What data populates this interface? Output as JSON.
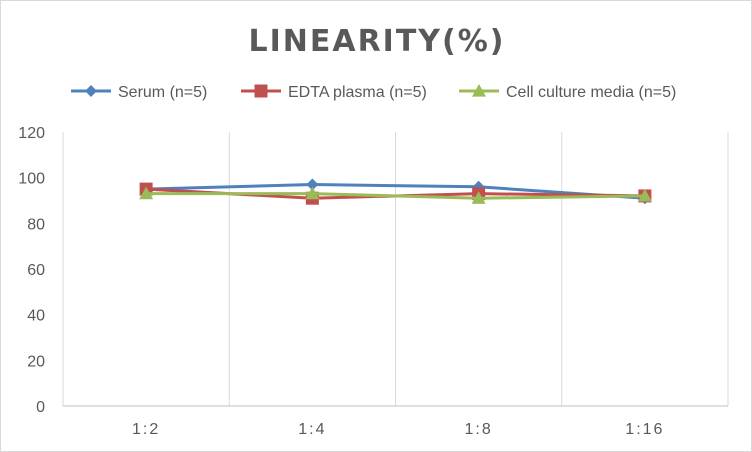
{
  "chart_data": {
    "type": "line",
    "title": "LINEARITY(%)",
    "categories": [
      "1:2",
      "1:4",
      "1:8",
      "1:16"
    ],
    "ylim": [
      0,
      120
    ],
    "yticks": [
      0,
      20,
      40,
      60,
      80,
      100,
      120
    ],
    "grid": "vertical category lines",
    "legend": "top",
    "series": [
      {
        "name": "Serum (n=5)",
        "color": "#4f81bd",
        "marker": "diamond",
        "values": [
          95,
          97,
          96,
          91
        ]
      },
      {
        "name": "EDTA plasma (n=5)",
        "color": "#c0504d",
        "marker": "square",
        "values": [
          95,
          91,
          93,
          92
        ]
      },
      {
        "name": "Cell culture media (n=5)",
        "color": "#9bbb59",
        "marker": "triangle",
        "values": [
          93,
          93,
          91,
          92
        ]
      }
    ]
  }
}
